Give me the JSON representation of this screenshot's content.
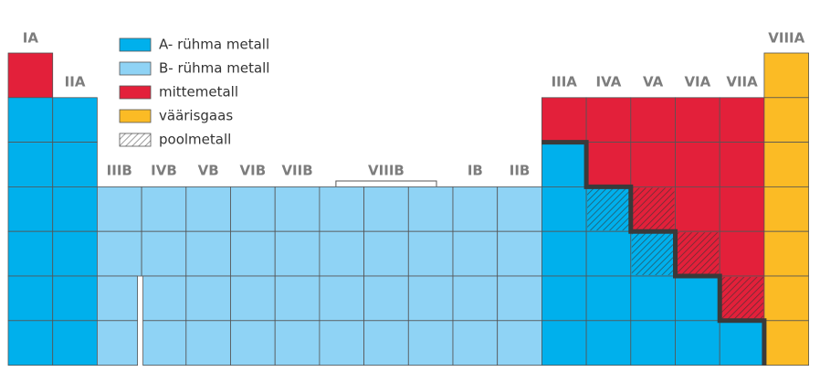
{
  "group_labels": [
    "IA",
    "IIA",
    "IIIB",
    "IVB",
    "VB",
    "VIB",
    "VIIB",
    "VIIIB",
    "IB",
    "IIB",
    "IIIA",
    "IVA",
    "VA",
    "VIA",
    "VIIA",
    "VIIIA"
  ],
  "legend": [
    {
      "label": "A- rühma metall",
      "color": "#00b0ec"
    },
    {
      "label": "B- rühma metall",
      "color": "#8fd3f5"
    },
    {
      "label": "mittemetall",
      "color": "#e3203a"
    },
    {
      "label": "väärisgaas",
      "color": "#fbbb25"
    },
    {
      "label": "poolmetall",
      "color": "#ffffff"
    }
  ]
}
